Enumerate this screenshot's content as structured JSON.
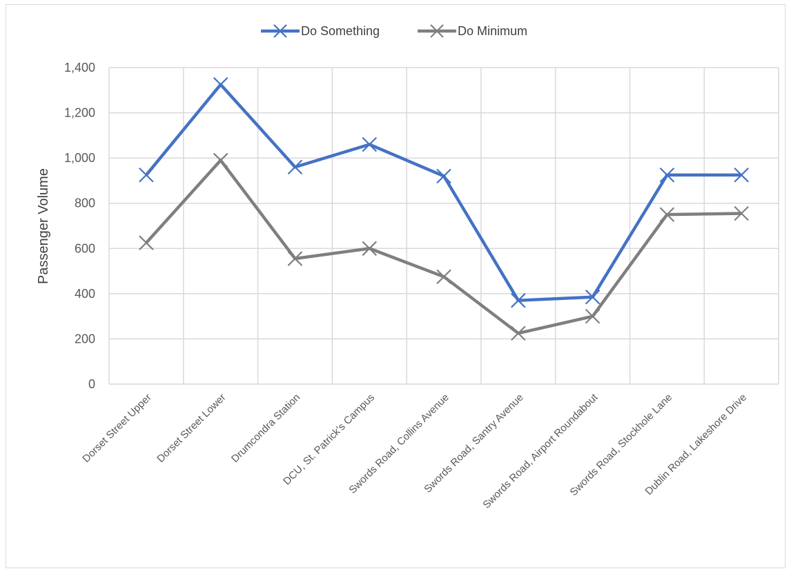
{
  "chart_data": {
    "type": "line",
    "title": "",
    "xlabel": "",
    "ylabel": "Passenger Volume",
    "ylim": [
      0,
      1400
    ],
    "yticks": [
      0,
      200,
      400,
      600,
      800,
      1000,
      1200,
      1400
    ],
    "ytick_labels": [
      "0",
      "200",
      "400",
      "600",
      "800",
      "1,000",
      "1,200",
      "1,400"
    ],
    "grid": true,
    "legend_position": "top-center",
    "categories": [
      "Dorset Street Upper",
      "Dorset Street Lower",
      "Drumcondra Station",
      "DCU, St. Patrick's Campus",
      "Swords Road, Collins Avenue",
      "Swords Road, Santry Avenue",
      "Swords Road, Airport Roundabout",
      "Swords Road, Stockhole Lane",
      "Dublin Road, Lakeshore Drive"
    ],
    "series": [
      {
        "name": "Do Something",
        "color": "#4472c4",
        "marker": "x",
        "values": [
          925,
          1325,
          960,
          1060,
          920,
          370,
          385,
          925,
          925
        ]
      },
      {
        "name": "Do Minimum",
        "color": "#7f7f7f",
        "marker": "x",
        "values": [
          625,
          990,
          555,
          600,
          475,
          225,
          300,
          750,
          755
        ]
      }
    ]
  }
}
